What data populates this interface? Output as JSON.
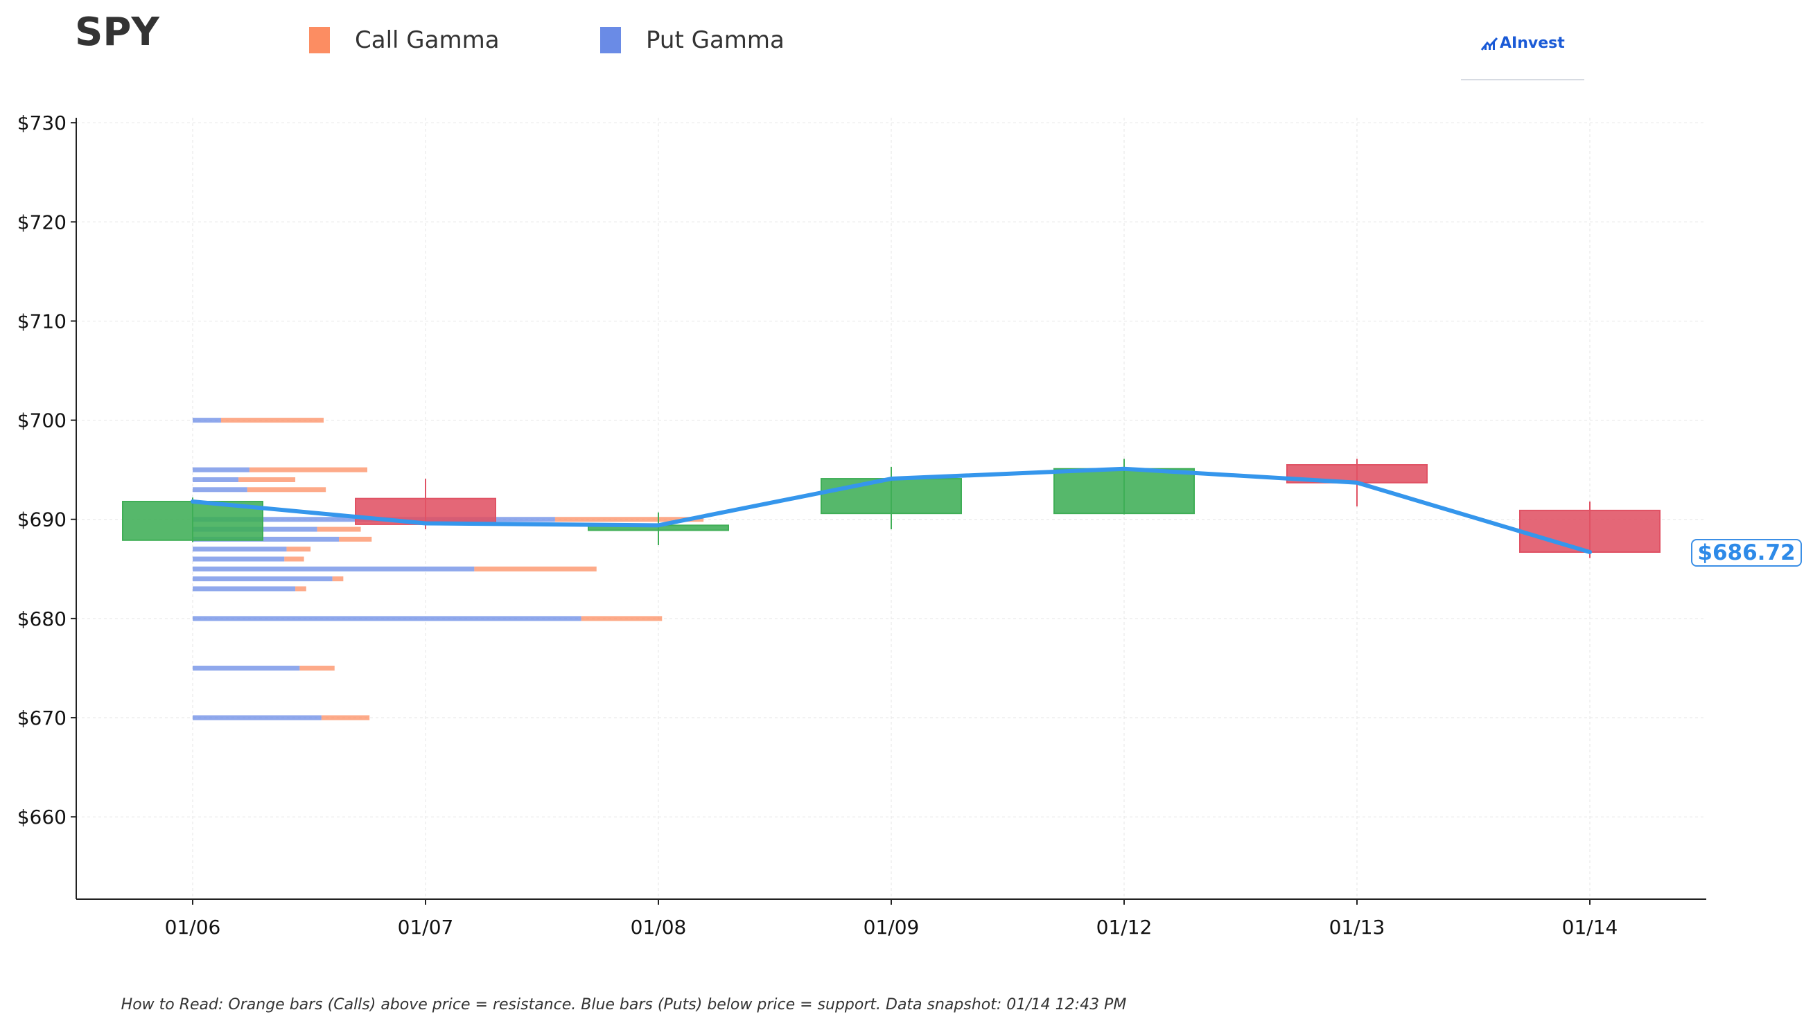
{
  "header": {
    "ticker": "SPY",
    "legend": [
      {
        "label": "Call Gamma",
        "color": "#fc8d62"
      },
      {
        "label": "Put Gamma",
        "color": "#6a8be6"
      }
    ],
    "logo_text": "AInvest"
  },
  "footer": {
    "text": "How to Read: Orange bars (Calls) above price = resistance. Blue bars (Puts) below price = support. Data snapshot: 01/14 12:43 PM"
  },
  "price_tag": {
    "label": "$686.72",
    "value": 686.72
  },
  "colors": {
    "up": "#3fae56",
    "down": "#e05264",
    "line": "#3596ec",
    "call": "#fc8d62",
    "put": "#6a8be6"
  },
  "chart_data": {
    "type": "candlestick",
    "x_labels": [
      "01/06",
      "01/07",
      "01/08",
      "01/09",
      "01/12",
      "01/13",
      "01/14"
    ],
    "y_ticks": [
      660,
      670,
      680,
      690,
      700,
      710,
      720,
      730
    ],
    "y_tick_labels": [
      "$660",
      "$670",
      "$680",
      "$690",
      "$700",
      "$710",
      "$720",
      "$730"
    ],
    "ylim": [
      651.7,
      730.5
    ],
    "grid": true,
    "candles": [
      {
        "date": "01/06",
        "open": 687.9,
        "close": 691.8,
        "high": 692.2,
        "low": 687.7
      },
      {
        "date": "01/07",
        "open": 692.1,
        "close": 689.5,
        "high": 694.1,
        "low": 689.0
      },
      {
        "date": "01/08",
        "open": 688.9,
        "close": 689.4,
        "high": 690.7,
        "low": 687.4
      },
      {
        "date": "01/09",
        "open": 690.6,
        "close": 694.1,
        "high": 695.3,
        "low": 689.0
      },
      {
        "date": "01/12",
        "open": 690.6,
        "close": 695.1,
        "high": 696.1,
        "low": 690.5
      },
      {
        "date": "01/13",
        "open": 695.5,
        "close": 693.7,
        "high": 696.1,
        "low": 691.3
      },
      {
        "date": "01/14",
        "open": 690.9,
        "close": 686.7,
        "high": 691.8,
        "low": 686.1
      }
    ],
    "close_line": [
      691.8,
      689.6,
      689.4,
      694.1,
      695.1,
      693.7,
      686.7
    ],
    "gamma_levels": [
      {
        "strike": 700,
        "put": 0.65,
        "call": 2.35
      },
      {
        "strike": 695,
        "put": 1.3,
        "call": 2.7
      },
      {
        "strike": 694,
        "put": 1.05,
        "call": 1.3
      },
      {
        "strike": 693,
        "put": 1.25,
        "call": 1.8
      },
      {
        "strike": 690,
        "put": 8.3,
        "call": 3.4
      },
      {
        "strike": 689,
        "put": 2.85,
        "call": 1.0
      },
      {
        "strike": 688,
        "put": 3.35,
        "call": 0.75
      },
      {
        "strike": 687,
        "put": 2.15,
        "call": 0.55
      },
      {
        "strike": 686,
        "put": 2.1,
        "call": 0.45
      },
      {
        "strike": 685,
        "put": 6.45,
        "call": 2.8
      },
      {
        "strike": 684,
        "put": 3.2,
        "call": 0.25
      },
      {
        "strike": 683,
        "put": 2.35,
        "call": 0.25
      },
      {
        "strike": 680,
        "put": 8.9,
        "call": 1.85
      },
      {
        "strike": 675,
        "put": 2.45,
        "call": 0.8
      },
      {
        "strike": 670,
        "put": 2.95,
        "call": 1.1
      }
    ]
  }
}
